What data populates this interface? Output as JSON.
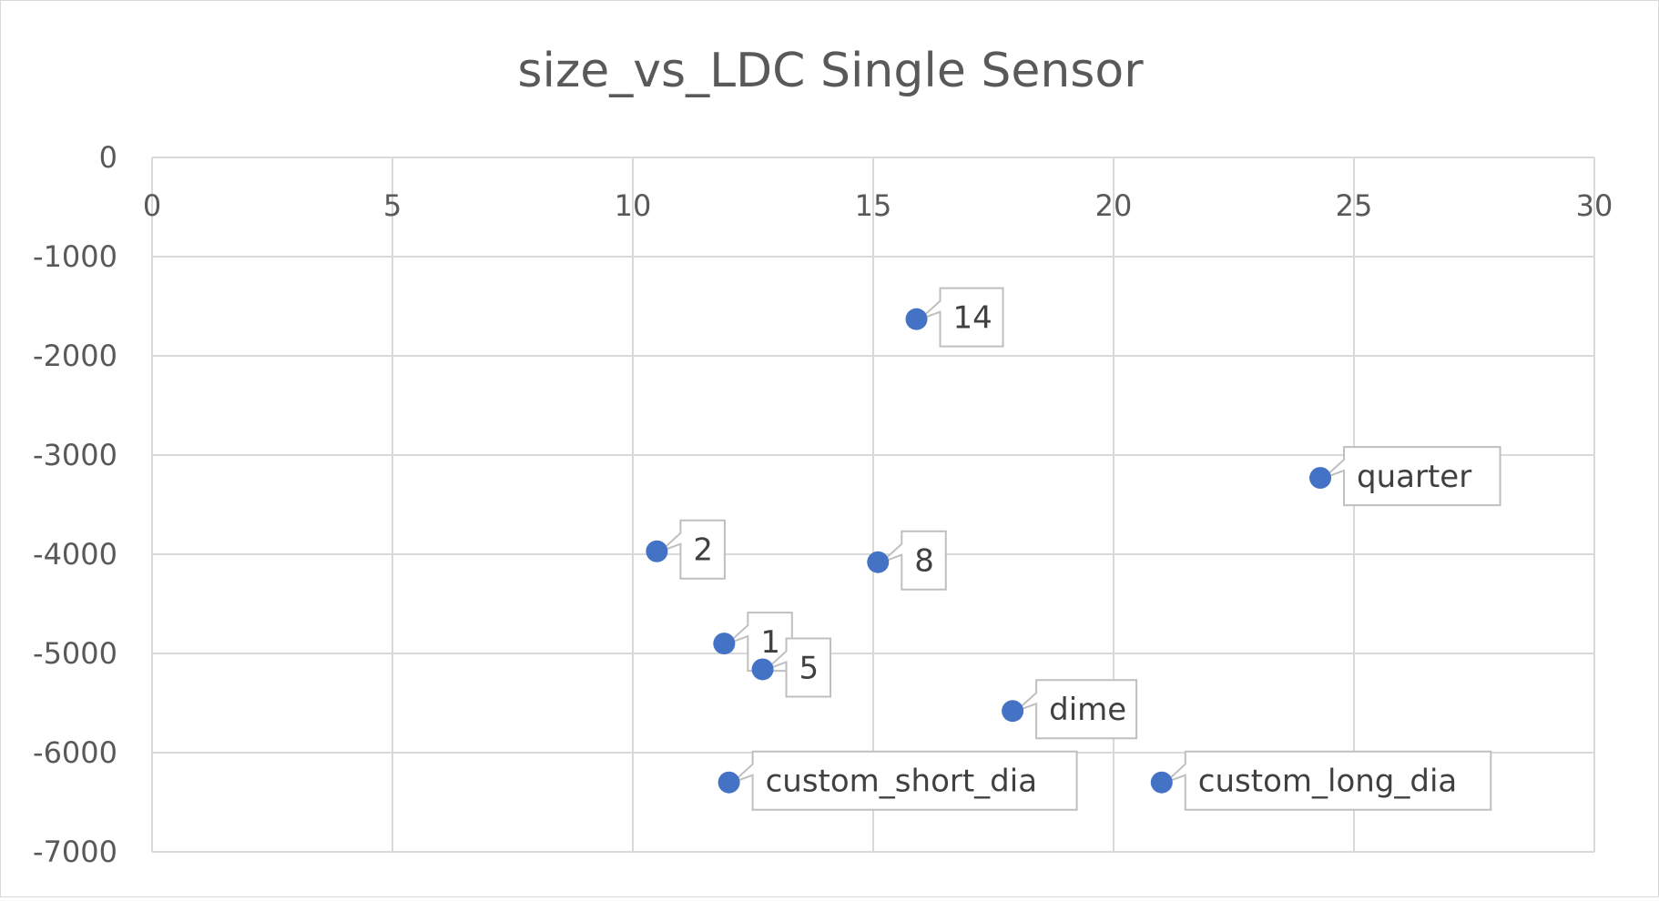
{
  "chart_data": {
    "type": "scatter",
    "title": "size_vs_LDC Single Sensor",
    "xlim": [
      0,
      30
    ],
    "ylim": [
      -7000,
      0
    ],
    "x_ticks": [
      0,
      5,
      10,
      15,
      20,
      25,
      30
    ],
    "y_ticks": [
      0,
      -1000,
      -2000,
      -3000,
      -4000,
      -5000,
      -6000,
      -7000
    ],
    "x_tick_labels": [
      "0",
      "5",
      "10",
      "15",
      "20",
      "25",
      "30"
    ],
    "y_tick_labels": [
      "0",
      "-1000",
      "-2000",
      "-3000",
      "-4000",
      "-5000",
      "-6000",
      "-7000"
    ],
    "x_axis_position": "top",
    "grid": true,
    "marker_color": "#4472c4",
    "points": [
      {
        "label": "14",
        "x": 15.9,
        "y": -1630
      },
      {
        "label": "quarter",
        "x": 24.3,
        "y": -3230
      },
      {
        "label": "2",
        "x": 10.5,
        "y": -3970
      },
      {
        "label": "8",
        "x": 15.1,
        "y": -4080
      },
      {
        "label": "1",
        "x": 11.9,
        "y": -4900
      },
      {
        "label": "5",
        "x": 12.7,
        "y": -5160
      },
      {
        "label": "dime",
        "x": 17.9,
        "y": -5580
      },
      {
        "label": "custom_short_dia",
        "x": 12.0,
        "y": -6300
      },
      {
        "label": "custom_long_dia",
        "x": 21.0,
        "y": -6300
      }
    ]
  }
}
